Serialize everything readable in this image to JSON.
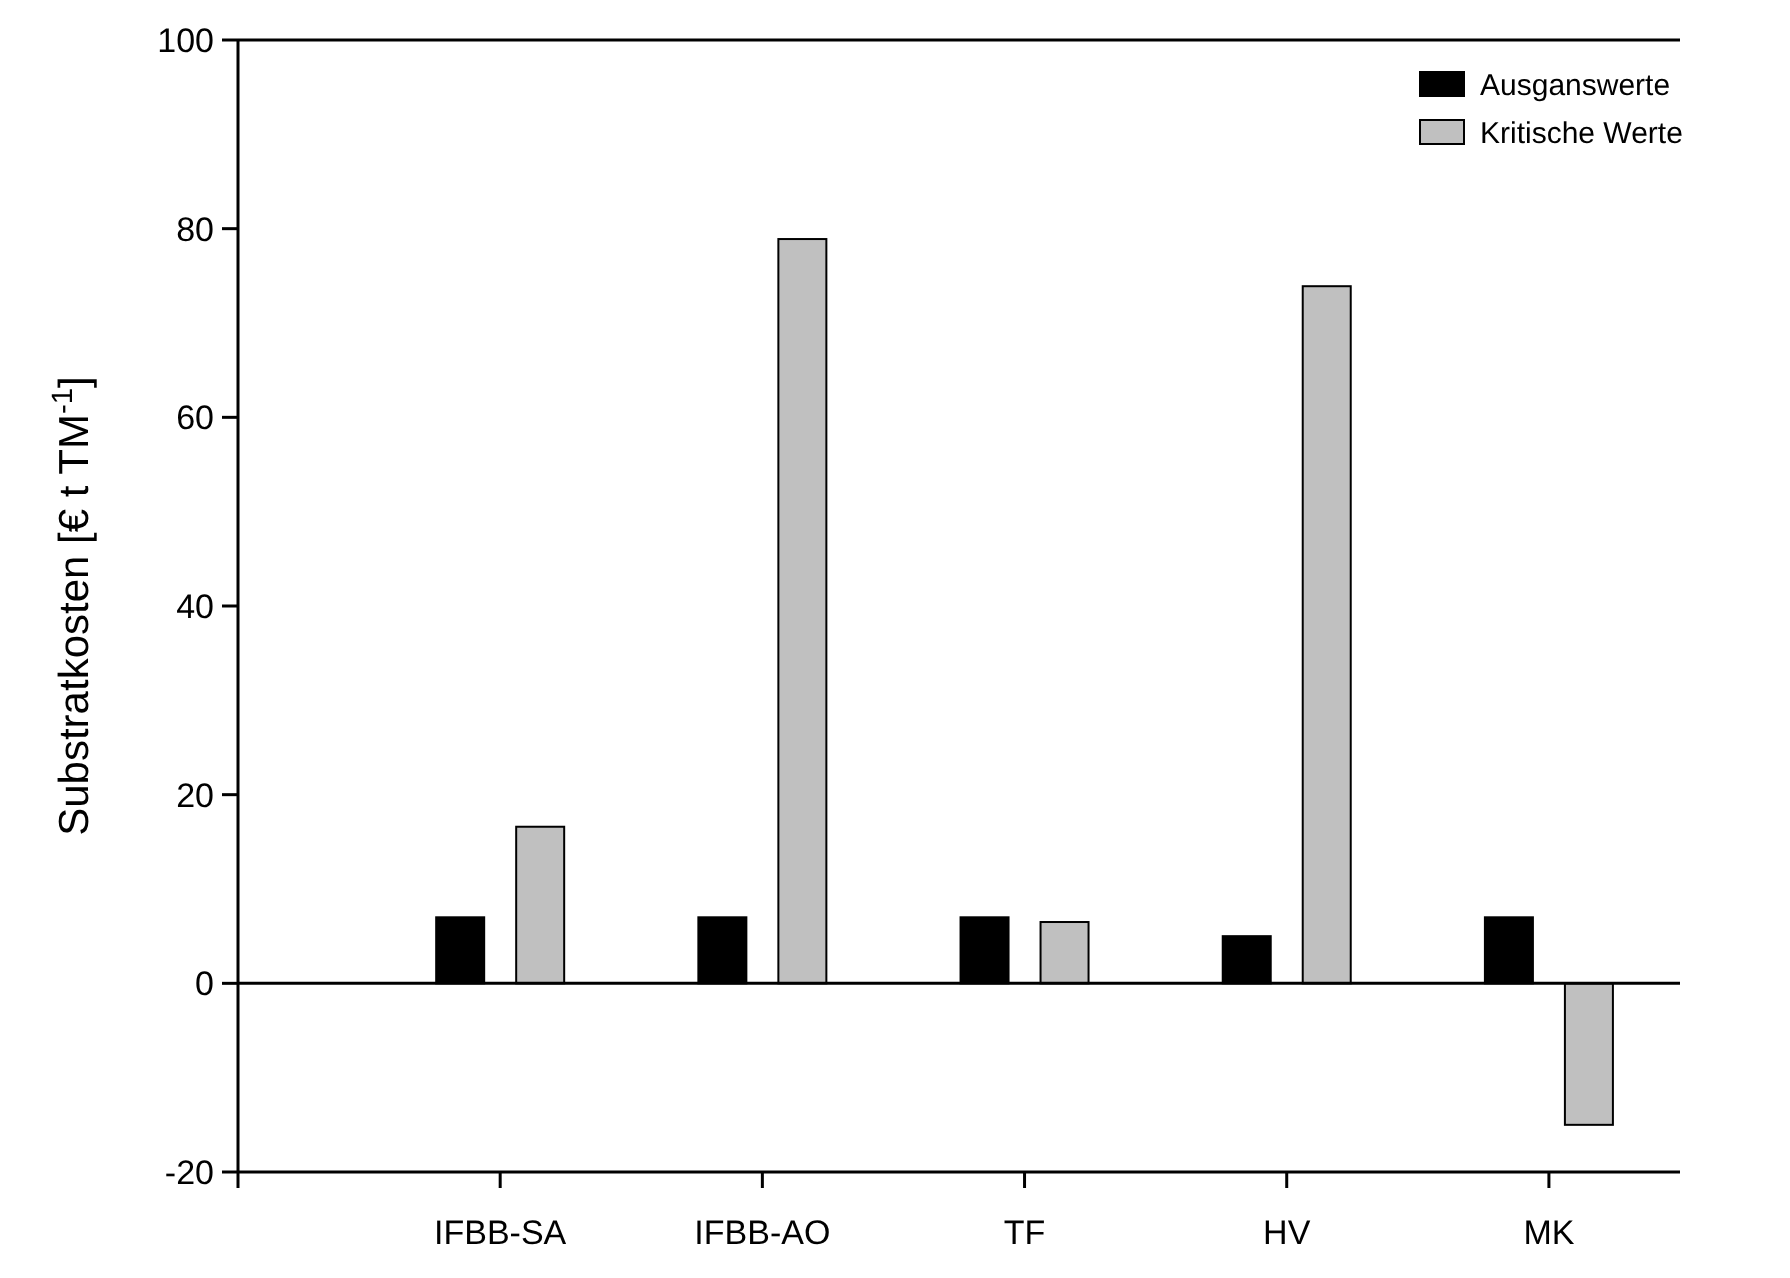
{
  "chart_data": {
    "type": "bar",
    "ylabel": "Substratkosten [€ t TM$^{-1}$]",
    "categories": [
      "IFBB-SA",
      "IFBB-AO",
      "TF",
      "HV",
      "MK"
    ],
    "series": [
      {
        "name": "Ausganswerte",
        "color": "#000000",
        "values": [
          7,
          7,
          7,
          5,
          7
        ]
      },
      {
        "name": "Kritische Werte",
        "color": "#c0c0c0",
        "values": [
          16.6,
          78.9,
          6.5,
          73.9,
          -15
        ]
      }
    ],
    "ylim": [
      -20,
      100
    ],
    "yticks": [
      -20,
      0,
      20,
      40,
      60,
      80,
      100
    ],
    "ref_lines": [
      {
        "axis": "y",
        "value": 0,
        "color": "#000000"
      }
    ],
    "legend": "top right"
  }
}
